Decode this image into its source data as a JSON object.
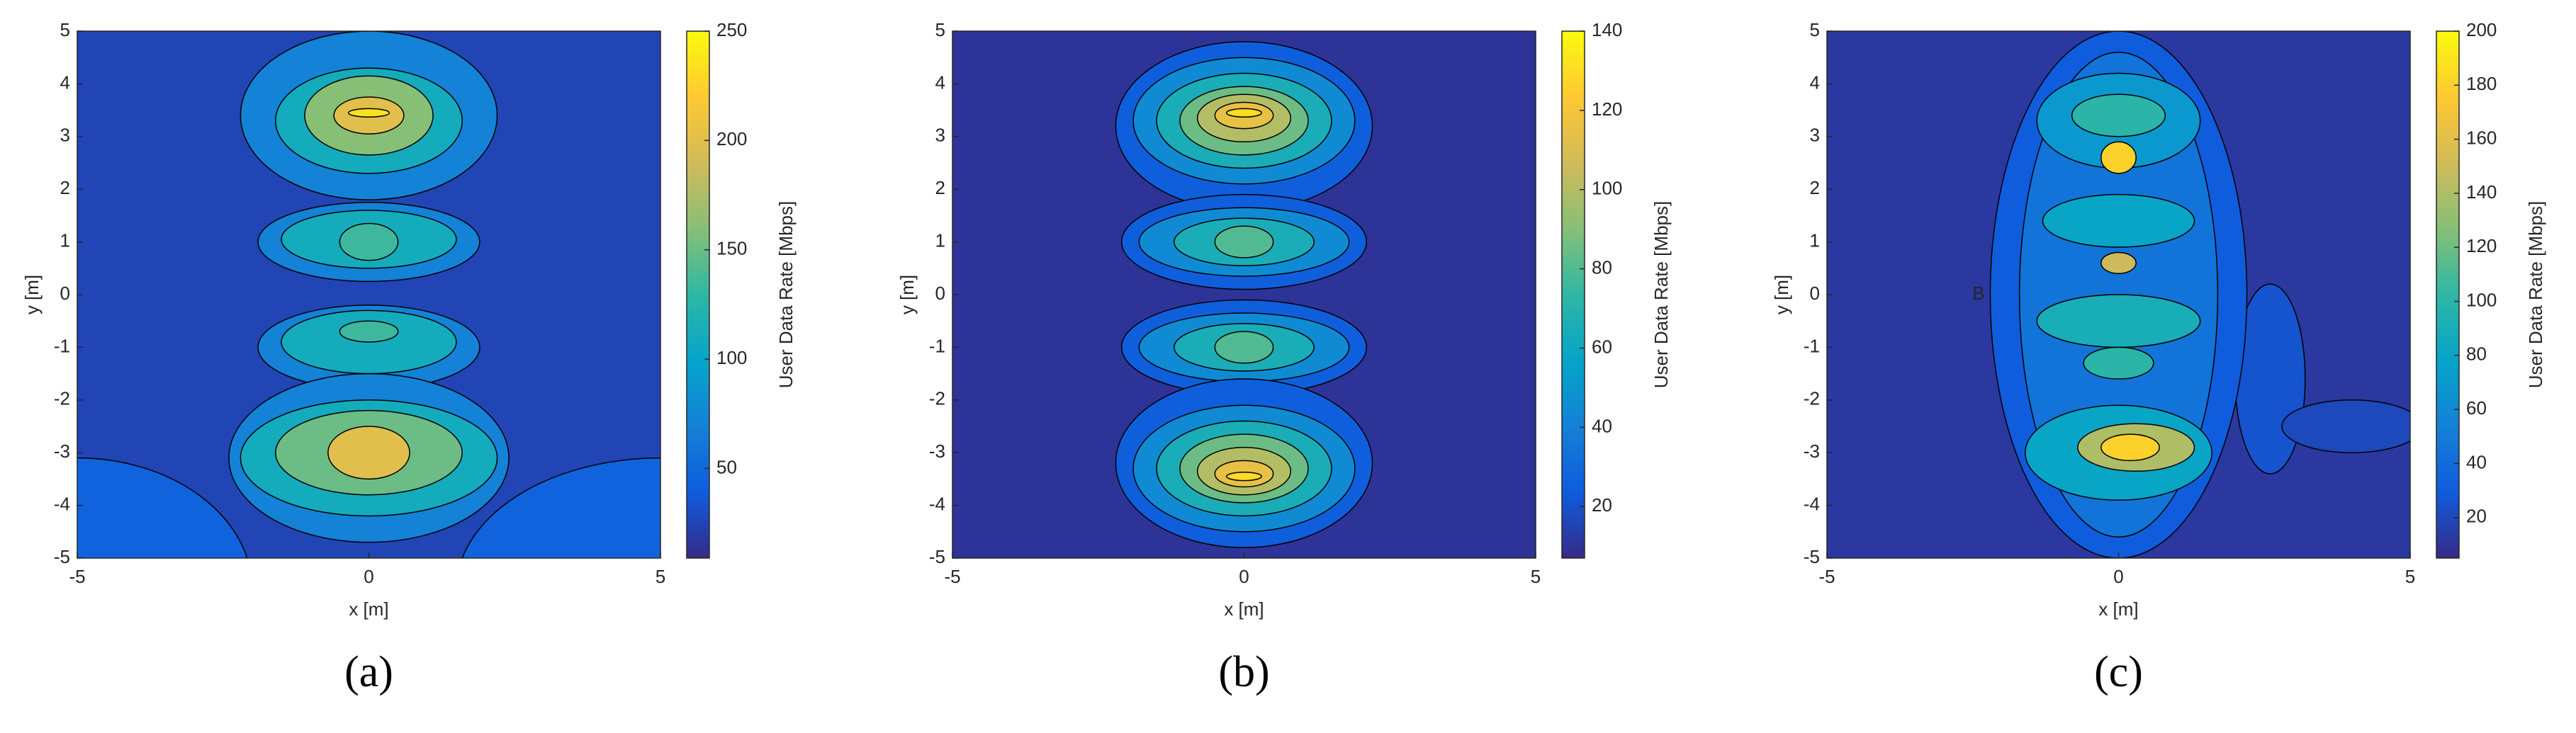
{
  "colormap": [
    "#352a87",
    "#0f5cdd",
    "#1481d6",
    "#06a4ca",
    "#2eb7a4",
    "#87bf77",
    "#d1bb59",
    "#fec832",
    "#f9fb0e"
  ],
  "chart_data": [
    {
      "type": "contour",
      "label": "(a)",
      "xlabel": "x [m]",
      "ylabel": "y [m]",
      "xlim": [
        -5,
        5
      ],
      "ylim": [
        -5,
        5
      ],
      "xticks": [
        -5,
        0,
        5
      ],
      "yticks": [
        -5,
        -4,
        -3,
        -2,
        -1,
        0,
        1,
        2,
        3,
        4,
        5
      ],
      "colorbar": {
        "label": "User Data Rate [Mbps]",
        "lim": [
          9,
          250
        ],
        "ticks": [
          50,
          100,
          150,
          200,
          250
        ]
      },
      "background": 25,
      "regions": [
        {
          "x": -5,
          "y": -5.6,
          "rx": 3,
          "ry": 2.5,
          "value": 45
        },
        {
          "x": 5,
          "y": -5.6,
          "rx": 3.5,
          "ry": 2.5,
          "value": 45
        },
        {
          "x": 0,
          "y": 3.4,
          "rx": 2.2,
          "ry": 1.6,
          "value": 70
        },
        {
          "x": 0,
          "y": 3.3,
          "rx": 1.6,
          "ry": 1.0,
          "value": 110
        },
        {
          "x": 0,
          "y": 3.4,
          "rx": 1.1,
          "ry": 0.75,
          "value": 160
        },
        {
          "x": 0,
          "y": 3.4,
          "rx": 0.6,
          "ry": 0.35,
          "value": 200
        },
        {
          "x": 0,
          "y": 3.45,
          "rx": 0.35,
          "ry": 0.08,
          "value": 235
        },
        {
          "x": 0,
          "y": 1,
          "rx": 1.9,
          "ry": 0.75,
          "value": 70
        },
        {
          "x": 0,
          "y": 1.05,
          "rx": 1.5,
          "ry": 0.55,
          "value": 110
        },
        {
          "x": 0,
          "y": 1,
          "rx": 0.5,
          "ry": 0.35,
          "value": 135
        },
        {
          "x": 0,
          "y": -1,
          "rx": 1.9,
          "ry": 0.8,
          "value": 70
        },
        {
          "x": 0,
          "y": -0.9,
          "rx": 1.5,
          "ry": 0.6,
          "value": 110
        },
        {
          "x": 0,
          "y": -0.7,
          "rx": 0.5,
          "ry": 0.2,
          "value": 135
        },
        {
          "x": 0,
          "y": -3.1,
          "rx": 2.4,
          "ry": 1.6,
          "value": 70
        },
        {
          "x": 0,
          "y": -3.1,
          "rx": 2.2,
          "ry": 1.1,
          "value": 110
        },
        {
          "x": 0,
          "y": -3,
          "rx": 1.6,
          "ry": 0.8,
          "value": 150
        },
        {
          "x": 0,
          "y": -3,
          "rx": 0.7,
          "ry": 0.5,
          "value": 200
        }
      ]
    },
    {
      "type": "contour",
      "label": "(b)",
      "xlabel": "x [m]",
      "ylabel": "y [m]",
      "xlim": [
        -5,
        5
      ],
      "ylim": [
        -5,
        5
      ],
      "xticks": [
        -5,
        0,
        5
      ],
      "yticks": [
        -5,
        -4,
        -3,
        -2,
        -1,
        0,
        1,
        2,
        3,
        4,
        5
      ],
      "colorbar": {
        "label": "User Data Rate [Mbps]",
        "lim": [
          7,
          140
        ],
        "ticks": [
          20,
          40,
          60,
          80,
          100,
          120,
          140
        ]
      },
      "background": 10,
      "regions": [
        {
          "x": 0,
          "y": 3.2,
          "rx": 2.2,
          "ry": 1.6,
          "value": 25
        },
        {
          "x": 0,
          "y": 3.3,
          "rx": 1.9,
          "ry": 1.2,
          "value": 45
        },
        {
          "x": 0,
          "y": 3.3,
          "rx": 1.5,
          "ry": 0.9,
          "value": 65
        },
        {
          "x": 0,
          "y": 3.3,
          "rx": 1.1,
          "ry": 0.65,
          "value": 85
        },
        {
          "x": 0,
          "y": 3.35,
          "rx": 0.8,
          "ry": 0.45,
          "value": 100
        },
        {
          "x": 0,
          "y": 3.4,
          "rx": 0.5,
          "ry": 0.25,
          "value": 115
        },
        {
          "x": 0,
          "y": 3.45,
          "rx": 0.3,
          "ry": 0.08,
          "value": 130
        },
        {
          "x": 0,
          "y": 1,
          "rx": 2.1,
          "ry": 0.9,
          "value": 25
        },
        {
          "x": 0,
          "y": 1,
          "rx": 1.8,
          "ry": 0.65,
          "value": 45
        },
        {
          "x": 0,
          "y": 1,
          "rx": 1.2,
          "ry": 0.45,
          "value": 65
        },
        {
          "x": 0,
          "y": 1,
          "rx": 0.5,
          "ry": 0.3,
          "value": 80
        },
        {
          "x": 0,
          "y": -1,
          "rx": 2.1,
          "ry": 0.9,
          "value": 25
        },
        {
          "x": 0,
          "y": -1,
          "rx": 1.8,
          "ry": 0.65,
          "value": 45
        },
        {
          "x": 0,
          "y": -1,
          "rx": 1.2,
          "ry": 0.45,
          "value": 65
        },
        {
          "x": 0,
          "y": -1,
          "rx": 0.5,
          "ry": 0.3,
          "value": 80
        },
        {
          "x": 0,
          "y": -3.2,
          "rx": 2.2,
          "ry": 1.6,
          "value": 25
        },
        {
          "x": 0,
          "y": -3.3,
          "rx": 1.9,
          "ry": 1.2,
          "value": 45
        },
        {
          "x": 0,
          "y": -3.3,
          "rx": 1.5,
          "ry": 0.9,
          "value": 65
        },
        {
          "x": 0,
          "y": -3.3,
          "rx": 1.1,
          "ry": 0.65,
          "value": 85
        },
        {
          "x": 0,
          "y": -3.35,
          "rx": 0.8,
          "ry": 0.45,
          "value": 100
        },
        {
          "x": 0,
          "y": -3.4,
          "rx": 0.5,
          "ry": 0.25,
          "value": 115
        },
        {
          "x": 0,
          "y": -3.45,
          "rx": 0.3,
          "ry": 0.08,
          "value": 130
        }
      ]
    },
    {
      "type": "contour",
      "label": "(c)",
      "xlabel": "x [m]",
      "ylabel": "y [m]",
      "xlim": [
        -5,
        5
      ],
      "ylim": [
        -5,
        5
      ],
      "xticks": [
        -5,
        0,
        5
      ],
      "yticks": [
        -5,
        -4,
        -3,
        -2,
        -1,
        0,
        1,
        2,
        3,
        4,
        5
      ],
      "colorbar": {
        "label": "User Data Rate [Mbps]",
        "lim": [
          5,
          200
        ],
        "ticks": [
          20,
          40,
          60,
          80,
          100,
          120,
          140,
          160,
          180,
          200
        ]
      },
      "background": 12,
      "annotations": [
        {
          "text": "B",
          "x": -2.4,
          "y": 0
        }
      ],
      "regions": [
        {
          "x": 2.6,
          "y": -1.6,
          "rx": 0.6,
          "ry": 1.8,
          "value": 25
        },
        {
          "x": 4,
          "y": -2.5,
          "rx": 1.2,
          "ry": 0.5,
          "value": 20
        },
        {
          "x": 0,
          "y": 0,
          "rx": 2.2,
          "ry": 5,
          "value": 30
        },
        {
          "x": 0,
          "y": 0,
          "rx": 1.7,
          "ry": 4.6,
          "value": 45
        },
        {
          "x": 0,
          "y": 3.3,
          "rx": 1.4,
          "ry": 0.9,
          "value": 70
        },
        {
          "x": 0,
          "y": 3.4,
          "rx": 0.8,
          "ry": 0.4,
          "value": 100
        },
        {
          "x": 0,
          "y": 2.6,
          "rx": 0.3,
          "ry": 0.3,
          "value": 180
        },
        {
          "x": 0,
          "y": 1.4,
          "rx": 1.3,
          "ry": 0.5,
          "value": 80
        },
        {
          "x": 0,
          "y": 0.6,
          "rx": 0.3,
          "ry": 0.2,
          "value": 150
        },
        {
          "x": 0,
          "y": -0.5,
          "rx": 1.4,
          "ry": 0.5,
          "value": 90
        },
        {
          "x": 0,
          "y": -1.3,
          "rx": 0.6,
          "ry": 0.3,
          "value": 100
        },
        {
          "x": 0,
          "y": -3,
          "rx": 1.6,
          "ry": 0.9,
          "value": 80
        },
        {
          "x": 0.3,
          "y": -2.9,
          "rx": 1.0,
          "ry": 0.45,
          "value": 140
        },
        {
          "x": 0.2,
          "y": -2.9,
          "rx": 0.5,
          "ry": 0.25,
          "value": 180
        }
      ]
    }
  ]
}
